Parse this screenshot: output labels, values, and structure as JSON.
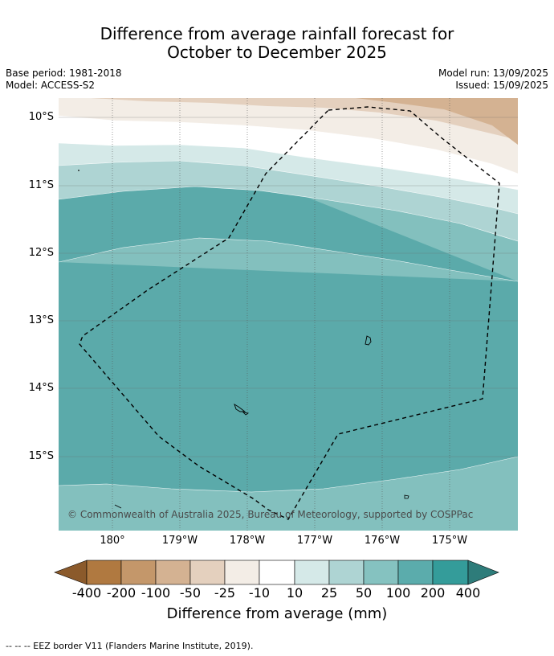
{
  "title_line1": "Difference from average rainfall forecast for",
  "title_line2": "October to December 2025",
  "meta": {
    "base_period": "Base period: 1981-2018",
    "model": "Model: ACCESS-S2",
    "model_run": "Model run: 13/09/2025",
    "issued": "Issued: 15/09/2025"
  },
  "axes": {
    "lat_labels": [
      "10°S",
      "11°S",
      "12°S",
      "13°S",
      "14°S",
      "15°S"
    ],
    "lon_labels": [
      "180°",
      "179°W",
      "178°W",
      "177°W",
      "176°W",
      "175°W"
    ]
  },
  "copyright": "© Commonwealth of Australia 2025, Bureau of Meteorology, supported by COSPPac",
  "colorbar": {
    "labels": [
      "-400",
      "-200",
      "-100",
      "-50",
      "-25",
      "-10",
      "10",
      "25",
      "50",
      "100",
      "200",
      "400"
    ],
    "colors": [
      "#8b5a2b",
      "#b07940",
      "#c4976a",
      "#d4b292",
      "#e4d0be",
      "#f3ede6",
      "#ffffff",
      "#d5e9e8",
      "#aed4d3",
      "#85c2c0",
      "#5bacac",
      "#349c9a",
      "#2e7c7a"
    ],
    "title": "Difference from average (mm)"
  },
  "footnote": "--  --  -- EEZ border V11 (Flanders Marine Institute, 2019)."
}
